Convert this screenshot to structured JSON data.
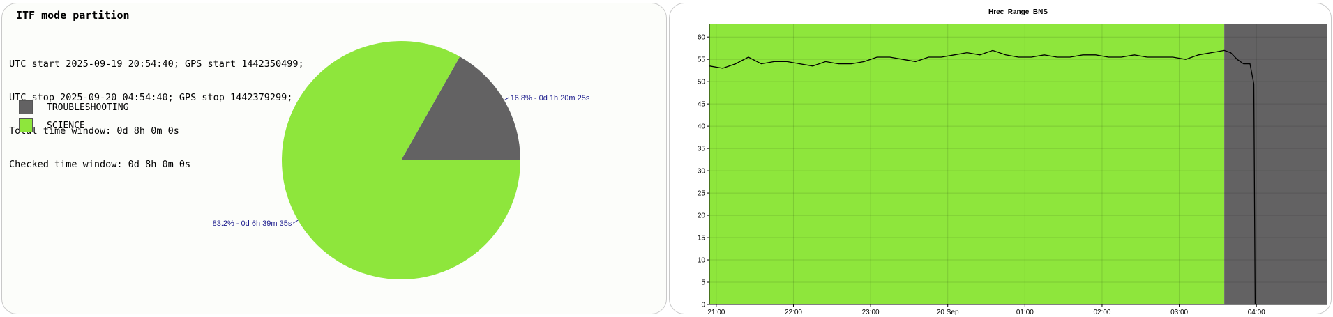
{
  "left_panel": {
    "title": "ITF mode partition",
    "info_lines": [
      "UTC start 2025-09-19 20:54:40; GPS start 1442350499;",
      "UTC stop 2025-09-20 04:54:40; GPS stop 1442379299;",
      "Total time window: 0d 8h 0m 0s",
      "Checked time window: 0d 8h 0m 0s"
    ],
    "legend": [
      {
        "label": "TROUBLESHOOTING",
        "color": "#636263"
      },
      {
        "label": "SCIENCE",
        "color": "#8ee63c"
      }
    ]
  },
  "chart_data": [
    {
      "type": "pie",
      "slices": [
        {
          "name": "TROUBLESHOOTING",
          "value": 16.8,
          "label": "16.8% - 0d 1h 20m 25s",
          "color": "#636263"
        },
        {
          "name": "SCIENCE",
          "value": 83.2,
          "label": "83.2% - 0d 6h 39m 35s",
          "color": "#8ee63c"
        }
      ],
      "label_color": "#1a1a8c"
    },
    {
      "type": "line",
      "title": "Hrec_Range_BNS",
      "x_start": "2025-09-19 20:54:40",
      "x_end": "2025-09-20 04:54:40",
      "x_ticks": [
        "21:00",
        "22:00",
        "23:00",
        "20 Sep",
        "01:00",
        "02:00",
        "03:00",
        "04:00"
      ],
      "y_ticks": [
        0,
        5,
        10,
        15,
        20,
        25,
        30,
        35,
        40,
        45,
        50,
        55,
        60
      ],
      "ylim": [
        0,
        63
      ],
      "grid": true,
      "background_bands": [
        {
          "from": "2025-09-19 20:54:40",
          "to": "2025-09-20 03:35:00",
          "color": "#8ee63c"
        },
        {
          "from": "2025-09-20 03:35:00",
          "to": "2025-09-20 04:54:40",
          "color": "#636263"
        }
      ],
      "series": [
        {
          "color": "#000000",
          "x": [
            "2025-09-19 20:55",
            "2025-09-19 21:05",
            "2025-09-19 21:15",
            "2025-09-19 21:25",
            "2025-09-19 21:35",
            "2025-09-19 21:45",
            "2025-09-19 21:55",
            "2025-09-19 22:05",
            "2025-09-19 22:15",
            "2025-09-19 22:25",
            "2025-09-19 22:35",
            "2025-09-19 22:45",
            "2025-09-19 22:55",
            "2025-09-19 23:05",
            "2025-09-19 23:15",
            "2025-09-19 23:25",
            "2025-09-19 23:35",
            "2025-09-19 23:45",
            "2025-09-19 23:55",
            "2025-09-20 00:05",
            "2025-09-20 00:15",
            "2025-09-20 00:25",
            "2025-09-20 00:35",
            "2025-09-20 00:45",
            "2025-09-20 00:55",
            "2025-09-20 01:05",
            "2025-09-20 01:15",
            "2025-09-20 01:25",
            "2025-09-20 01:35",
            "2025-09-20 01:45",
            "2025-09-20 01:55",
            "2025-09-20 02:05",
            "2025-09-20 02:15",
            "2025-09-20 02:25",
            "2025-09-20 02:35",
            "2025-09-20 02:45",
            "2025-09-20 02:55",
            "2025-09-20 03:05",
            "2025-09-20 03:15",
            "2025-09-20 03:25",
            "2025-09-20 03:35",
            "2025-09-20 03:40",
            "2025-09-20 03:45",
            "2025-09-20 03:50",
            "2025-09-20 03:55",
            "2025-09-20 03:58",
            "2025-09-20 03:59"
          ],
          "values": [
            53.5,
            53,
            54,
            55.5,
            54,
            54.5,
            54.5,
            54,
            53.5,
            54.5,
            54,
            54,
            54.5,
            55.5,
            55.5,
            55,
            54.5,
            55.5,
            55.5,
            56,
            56.5,
            56,
            57,
            56,
            55.5,
            55.5,
            56,
            55.5,
            55.5,
            56,
            56,
            55.5,
            55.5,
            56,
            55.5,
            55.5,
            55.5,
            55,
            56,
            56.5,
            57,
            56.5,
            55,
            54,
            54,
            49.5,
            0
          ]
        }
      ]
    }
  ]
}
